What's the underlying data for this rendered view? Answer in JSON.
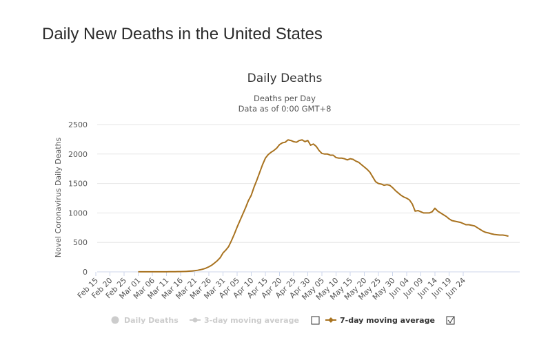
{
  "page": {
    "title": "Daily New Deaths in the United States"
  },
  "chart_data": {
    "type": "line",
    "title": "Daily Deaths",
    "subtitle_lines": [
      "Deaths per Day",
      "Data as of 0:00 GMT+8"
    ],
    "ylabel": "Novel Coronavirus Daily Deaths",
    "xlabel": "",
    "ylim": [
      0,
      2500
    ],
    "y_ticks": [
      0,
      500,
      1000,
      1500,
      2000,
      2500
    ],
    "x_start": "Feb 15",
    "x_tick_labels": [
      "Feb 15",
      "Feb 20",
      "Feb 25",
      "Mar 01",
      "Mar 06",
      "Mar 11",
      "Mar 16",
      "Mar 21",
      "Mar 26",
      "Mar 31",
      "Apr 05",
      "Apr 10",
      "Apr 15",
      "Apr 20",
      "Apr 25",
      "Apr 30",
      "May 05",
      "May 10",
      "May 15",
      "May 20",
      "May 25",
      "May 30",
      "Jun 04",
      "Jun 09",
      "Jun 14",
      "Jun 19",
      "Jun 24"
    ],
    "grid": true,
    "legend": [
      {
        "label": "Daily Deaths",
        "visible": false,
        "checkbox": false
      },
      {
        "label": "3-day moving average",
        "visible": false,
        "checkbox": false
      },
      {
        "label": "7-day moving average",
        "visible": true,
        "checkbox": true
      }
    ],
    "series": [
      {
        "name": "7-day moving average",
        "color": "#a8721f",
        "start_day": 15,
        "values": [
          1,
          1,
          1,
          1,
          1,
          1,
          1,
          2,
          2,
          2,
          2,
          3,
          3,
          3,
          4,
          5,
          6,
          8,
          11,
          15,
          20,
          27,
          36,
          48,
          64,
          86,
          113,
          150,
          190,
          240,
          320,
          370,
          430,
          530,
          640,
          760,
          870,
          980,
          1090,
          1210,
          1300,
          1440,
          1560,
          1690,
          1820,
          1930,
          1990,
          2030,
          2060,
          2100,
          2160,
          2190,
          2200,
          2240,
          2230,
          2210,
          2200,
          2230,
          2240,
          2210,
          2230,
          2150,
          2170,
          2130,
          2060,
          2010,
          2000,
          2000,
          1980,
          1980,
          1940,
          1930,
          1930,
          1920,
          1900,
          1920,
          1910,
          1880,
          1860,
          1820,
          1780,
          1740,
          1690,
          1610,
          1530,
          1500,
          1490,
          1470,
          1480,
          1470,
          1430,
          1380,
          1340,
          1300,
          1270,
          1250,
          1220,
          1150,
          1030,
          1040,
          1020,
          1000,
          1000,
          1000,
          1020,
          1080,
          1030,
          1000,
          970,
          940,
          900,
          870,
          860,
          850,
          840,
          820,
          800,
          800,
          790,
          780,
          750,
          720,
          690,
          670,
          660,
          645,
          635,
          630,
          625,
          625,
          618,
          605
        ]
      }
    ]
  }
}
